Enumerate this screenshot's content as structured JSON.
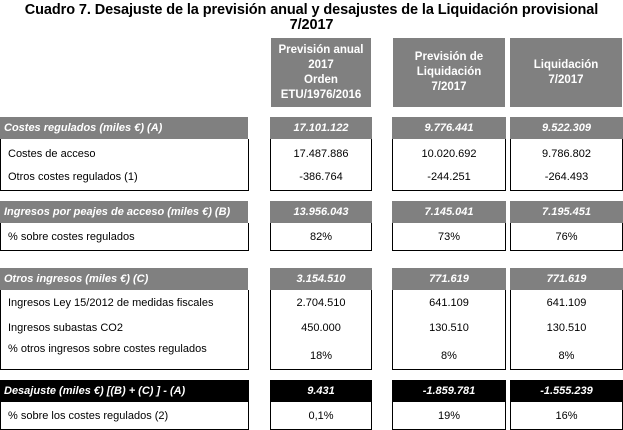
{
  "title_line1": "Cuadro 7. Desajuste de la previsión anual y desajustes de la Liquidación provisional",
  "title_line2": "7/2017",
  "headers": [
    [
      "Previsión anual",
      "2017",
      "Orden",
      "ETU/1976/2016"
    ],
    [
      "Previsión de",
      "Liquidación",
      "7/2017"
    ],
    [
      "Liquidación",
      "7/2017"
    ]
  ],
  "sections": [
    {
      "label": "Costes regulados (miles €) (A)",
      "values": [
        "17.101.122",
        "9.776.441",
        "9.522.309"
      ],
      "rows": [
        {
          "label": "Costes de acceso",
          "values": [
            "17.487.886",
            "10.020.692",
            "9.786.802"
          ]
        },
        {
          "label": "Otros costes regulados (1)",
          "values": [
            "-386.764",
            "-244.251",
            "-264.493"
          ]
        }
      ]
    },
    {
      "label": "Ingresos por peajes de acceso (miles €) (B)",
      "values": [
        "13.956.043",
        "7.145.041",
        "7.195.451"
      ],
      "rows": [
        {
          "label": "% sobre costes regulados",
          "values": [
            "82%",
            "73%",
            "76%"
          ]
        }
      ]
    },
    {
      "label": "Otros ingresos (miles €) (C)",
      "values": [
        "3.154.510",
        "771.619",
        "771.619"
      ],
      "rows": [
        {
          "label": "Ingresos Ley 15/2012 de medidas fiscales",
          "values": [
            "2.704.510",
            "641.109",
            "641.109"
          ]
        },
        {
          "label": "Ingresos subastas CO2",
          "values": [
            "450.000",
            "130.510",
            "130.510"
          ]
        },
        {
          "label": "% otros ingresos sobre costes regulados",
          "values": [
            "18%",
            "8%",
            "8%"
          ]
        }
      ]
    },
    {
      "label": "Desajuste (miles €) [(B) + (C) ] - (A)",
      "values": [
        "9.431",
        "-1.859.781",
        "-1.555.239"
      ],
      "rows": [
        {
          "label": "% sobre los costes regulados (2)",
          "values": [
            "0,1%",
            "19%",
            "16%"
          ]
        }
      ]
    }
  ],
  "colors": {
    "band": "#808080",
    "desajuste_band": "#000000",
    "text_on_band": "#ffffff"
  }
}
